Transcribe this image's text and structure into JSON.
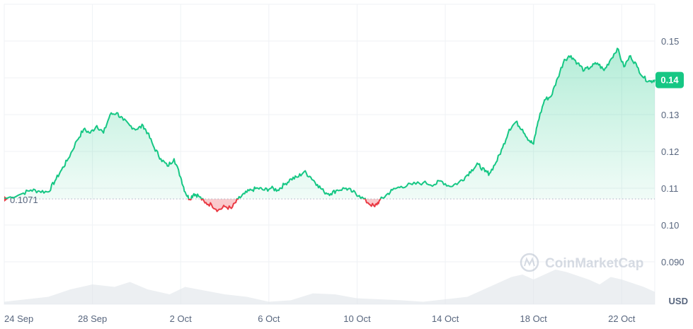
{
  "chart_data": {
    "type": "area",
    "baseline": 0.1071,
    "baseline_label": "0.1071",
    "current_label": "0.14",
    "currency_label": "USD",
    "watermark": "CoinMarketCap",
    "ylim": [
      0.08,
      0.16
    ],
    "y_ticks": [
      {
        "value": 0.15,
        "label": "0.15"
      },
      {
        "value": 0.14,
        "label": "0.14"
      },
      {
        "value": 0.13,
        "label": "0.13"
      },
      {
        "value": 0.12,
        "label": "0.12"
      },
      {
        "value": 0.11,
        "label": "0.11"
      },
      {
        "value": 0.1,
        "label": "0.10"
      },
      {
        "value": 0.09,
        "label": "0.090"
      }
    ],
    "x_ticks": [
      "24 Sep",
      "28 Sep",
      "2 Oct",
      "6 Oct",
      "10 Oct",
      "14 Oct",
      "18 Oct",
      "22 Oct"
    ],
    "x_tick_days": [
      0,
      4,
      8,
      12,
      16,
      20,
      24,
      28
    ],
    "x_domain_days": [
      0,
      29.5
    ],
    "colors": {
      "up": "#16c784",
      "down": "#ea3943",
      "grid": "#eff2f5",
      "axis_text": "#58667e"
    },
    "price": [
      [
        0.0,
        0.1071
      ],
      [
        0.8,
        0.1085
      ],
      [
        1.2,
        0.1095
      ],
      [
        1.6,
        0.1092
      ],
      [
        2.0,
        0.109
      ],
      [
        2.3,
        0.112
      ],
      [
        2.6,
        0.115
      ],
      [
        2.9,
        0.118
      ],
      [
        3.3,
        0.123
      ],
      [
        3.6,
        0.126
      ],
      [
        3.9,
        0.125
      ],
      [
        4.2,
        0.127
      ],
      [
        4.5,
        0.125
      ],
      [
        4.8,
        0.13
      ],
      [
        5.1,
        0.1305
      ],
      [
        5.4,
        0.1285
      ],
      [
        5.7,
        0.127
      ],
      [
        6.0,
        0.126
      ],
      [
        6.3,
        0.127
      ],
      [
        6.5,
        0.125
      ],
      [
        6.8,
        0.121
      ],
      [
        7.1,
        0.118
      ],
      [
        7.4,
        0.116
      ],
      [
        7.7,
        0.118
      ],
      [
        8.0,
        0.113
      ],
      [
        8.2,
        0.109
      ],
      [
        8.4,
        0.107
      ],
      [
        8.6,
        0.1085
      ],
      [
        8.8,
        0.108
      ],
      [
        9.1,
        0.106
      ],
      [
        9.4,
        0.1055
      ],
      [
        9.7,
        0.104
      ],
      [
        10.0,
        0.105
      ],
      [
        10.3,
        0.1045
      ],
      [
        10.6,
        0.107
      ],
      [
        10.9,
        0.1085
      ],
      [
        11.2,
        0.1095
      ],
      [
        11.5,
        0.11
      ],
      [
        11.8,
        0.1095
      ],
      [
        12.1,
        0.11
      ],
      [
        12.4,
        0.1095
      ],
      [
        12.7,
        0.111
      ],
      [
        13.0,
        0.1125
      ],
      [
        13.3,
        0.113
      ],
      [
        13.6,
        0.1145
      ],
      [
        13.9,
        0.113
      ],
      [
        14.2,
        0.111
      ],
      [
        14.5,
        0.109
      ],
      [
        14.8,
        0.1085
      ],
      [
        15.1,
        0.1095
      ],
      [
        15.5,
        0.11
      ],
      [
        15.8,
        0.109
      ],
      [
        16.1,
        0.108
      ],
      [
        16.5,
        0.106
      ],
      [
        16.8,
        0.105
      ],
      [
        17.0,
        0.1065
      ],
      [
        17.3,
        0.108
      ],
      [
        17.6,
        0.1095
      ],
      [
        18.0,
        0.1105
      ],
      [
        18.5,
        0.111
      ],
      [
        19.0,
        0.1115
      ],
      [
        19.5,
        0.111
      ],
      [
        19.8,
        0.112
      ],
      [
        20.2,
        0.1105
      ],
      [
        20.6,
        0.1115
      ],
      [
        20.9,
        0.113
      ],
      [
        21.2,
        0.115
      ],
      [
        21.5,
        0.1165
      ],
      [
        21.8,
        0.1145
      ],
      [
        22.0,
        0.114
      ],
      [
        22.3,
        0.117
      ],
      [
        22.6,
        0.121
      ],
      [
        22.9,
        0.126
      ],
      [
        23.2,
        0.128
      ],
      [
        23.5,
        0.126
      ],
      [
        23.8,
        0.123
      ],
      [
        24.0,
        0.122
      ],
      [
        24.2,
        0.128
      ],
      [
        24.5,
        0.134
      ],
      [
        24.8,
        0.135
      ],
      [
        25.1,
        0.14
      ],
      [
        25.4,
        0.145
      ],
      [
        25.7,
        0.146
      ],
      [
        26.0,
        0.144
      ],
      [
        26.3,
        0.142
      ],
      [
        26.6,
        0.143
      ],
      [
        26.9,
        0.144
      ],
      [
        27.2,
        0.142
      ],
      [
        27.5,
        0.145
      ],
      [
        27.8,
        0.148
      ],
      [
        28.1,
        0.143
      ],
      [
        28.4,
        0.146
      ],
      [
        28.7,
        0.143
      ],
      [
        29.0,
        0.14
      ],
      [
        29.3,
        0.139
      ],
      [
        29.5,
        0.1395
      ]
    ],
    "volume": [
      [
        0.0,
        0.05
      ],
      [
        1.0,
        0.1
      ],
      [
        2.0,
        0.15
      ],
      [
        3.0,
        0.3
      ],
      [
        4.0,
        0.4
      ],
      [
        5.0,
        0.35
      ],
      [
        5.7,
        0.45
      ],
      [
        6.5,
        0.3
      ],
      [
        7.5,
        0.2
      ],
      [
        8.2,
        0.35
      ],
      [
        8.8,
        0.3
      ],
      [
        10.0,
        0.2
      ],
      [
        11.0,
        0.15
      ],
      [
        12.0,
        0.05
      ],
      [
        13.0,
        0.08
      ],
      [
        14.0,
        0.22
      ],
      [
        15.0,
        0.2
      ],
      [
        16.0,
        0.12
      ],
      [
        17.0,
        0.1
      ],
      [
        18.0,
        0.08
      ],
      [
        19.0,
        0.05
      ],
      [
        20.0,
        0.1
      ],
      [
        21.0,
        0.15
      ],
      [
        22.0,
        0.35
      ],
      [
        23.0,
        0.55
      ],
      [
        23.5,
        0.6
      ],
      [
        24.0,
        0.5
      ],
      [
        25.0,
        0.7
      ],
      [
        25.5,
        0.65
      ],
      [
        26.5,
        0.5
      ],
      [
        27.0,
        0.4
      ],
      [
        27.5,
        0.55
      ],
      [
        28.0,
        0.5
      ],
      [
        29.0,
        0.35
      ],
      [
        29.5,
        0.25
      ]
    ]
  }
}
